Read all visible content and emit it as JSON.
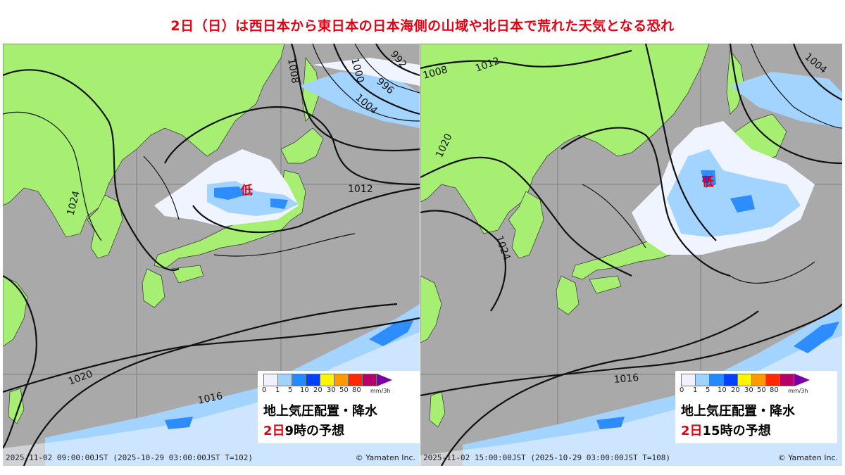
{
  "headline": "2日（日）は西日本から東日本の日本海側の山域や北日本で荒れた天気となる恐れ",
  "legend": {
    "ticks": [
      "0",
      "1",
      "5",
      "10",
      "20",
      "30",
      "50",
      "80"
    ],
    "unit": "mm/3h",
    "colors": [
      "#f2f2ff",
      "#a0d2ff",
      "#218cff",
      "#0041ff",
      "#fff500",
      "#ff9900",
      "#ff2800",
      "#b40068"
    ]
  },
  "panels": [
    {
      "caption_title": "地上気圧配置・降水",
      "caption_day": "2日",
      "caption_rest": "9時の予想",
      "footer": "2025-11-02 09:00:00JST (2025-10-29 03:00:00JST T=102)",
      "credit": "© Yamaten Inc.",
      "low_label": "低",
      "isobars": [
        "1024",
        "1020",
        "1016",
        "1012",
        "1008",
        "1004",
        "1000",
        "996",
        "992"
      ]
    },
    {
      "caption_title": "地上気圧配置・降水",
      "caption_day": "2日",
      "caption_rest": "15時の予想",
      "footer": "2025-11-02 15:00:00JST (2025-10-29 03:00:00JST T=108)",
      "credit": "© Yamaten Inc.",
      "low_label": "低",
      "isobars": [
        "1024",
        "1020",
        "1016",
        "1012",
        "1008",
        "1004"
      ]
    }
  ]
}
